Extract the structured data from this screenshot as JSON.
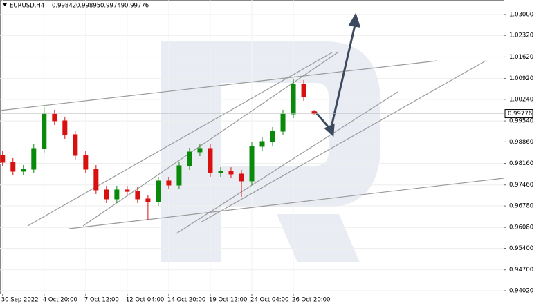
{
  "chart_data": {
    "type": "candlestick",
    "title": "EURUSD,H4",
    "x": [
      0,
      4,
      8,
      12,
      16,
      20,
      24,
      28,
      32,
      36,
      40,
      44,
      48,
      52,
      56,
      60,
      64,
      68,
      72,
      76,
      80,
      84,
      88,
      92,
      96,
      100,
      104,
      108,
      112,
      116,
      120
    ],
    "open": [
      0.9842,
      0.98196,
      0.97904,
      0.97971,
      0.98645,
      0.99767,
      0.99543,
      0.99094,
      0.9842,
      0.97971,
      0.97298,
      0.97006,
      0.97298,
      0.9725,
      0.97006,
      0.96916,
      0.9759,
      0.97455,
      0.98083,
      0.98532,
      0.98645,
      0.97859,
      0.979,
      0.97814,
      0.9759,
      0.98712,
      0.98869,
      0.99206,
      0.99767,
      1.00733,
      0.99842
    ],
    "high": [
      0.98555,
      0.98331,
      0.98106,
      0.9878,
      0.9999,
      0.99902,
      0.99678,
      0.99229,
      0.98555,
      0.98106,
      0.97433,
      0.97433,
      0.97433,
      0.97385,
      0.97141,
      0.97725,
      0.97725,
      0.98218,
      0.98667,
      0.9878,
      0.9878,
      0.98035,
      0.98035,
      0.97949,
      0.98847,
      0.99004,
      0.99341,
      0.99902,
      1.0089,
      1.00868,
      0.99895
    ],
    "low": [
      0.98061,
      0.97769,
      0.97769,
      0.97836,
      0.9851,
      0.99408,
      0.98959,
      0.98285,
      0.97836,
      0.97163,
      0.96871,
      0.96871,
      0.97115,
      0.96871,
      0.96332,
      0.96781,
      0.9732,
      0.9732,
      0.97948,
      0.98397,
      0.97724,
      0.97724,
      0.97679,
      0.97073,
      0.97455,
      0.98577,
      0.98734,
      0.99071,
      0.99632,
      1.00193,
      0.99749
    ],
    "close": [
      0.98196,
      0.97904,
      0.97971,
      0.98645,
      0.99767,
      0.99543,
      0.99094,
      0.9842,
      0.97971,
      0.97298,
      0.97006,
      0.97298,
      0.9725,
      0.97006,
      0.96916,
      0.9759,
      0.97455,
      0.98083,
      0.98532,
      0.98645,
      0.97859,
      0.979,
      0.97814,
      0.9759,
      0.98712,
      0.98869,
      0.99206,
      0.99767,
      1.00733,
      1.00328,
      0.99776
    ],
    "up_color": "#0a8a0a",
    "down_color": "#d81010",
    "xlim": [
      -1,
      193
    ],
    "xticks": [
      {
        "value": 0,
        "label": "30 Sep 2022"
      },
      {
        "value": 16,
        "label": "4 Oct 20:00"
      },
      {
        "value": 32,
        "label": "7 Oct 12:00"
      },
      {
        "value": 48,
        "label": "12 Oct 04:00"
      },
      {
        "value": 64,
        "label": "14 Oct 20:00"
      },
      {
        "value": 80,
        "label": "19 Oct 12:00"
      },
      {
        "value": 96,
        "label": "24 Oct 04:00"
      },
      {
        "value": 112,
        "label": "26 Oct 20:00"
      }
    ],
    "ylim": [
      0.9393,
      1.0347
    ],
    "yticks": [
      {
        "value": 1.03,
        "label": "1.03000"
      },
      {
        "value": 1.0232,
        "label": "1.02320"
      },
      {
        "value": 1.0162,
        "label": "1.01620"
      },
      {
        "value": 1.0092,
        "label": "1.00920"
      },
      {
        "value": 1.0024,
        "label": "1.00240"
      },
      {
        "value": 0.9954,
        "label": "0.99540"
      },
      {
        "value": 0.9886,
        "label": "0.98860"
      },
      {
        "value": 0.9816,
        "label": "0.98160"
      },
      {
        "value": 0.9746,
        "label": "0.97460"
      },
      {
        "value": 0.9678,
        "label": "0.96780"
      },
      {
        "value": 0.9608,
        "label": "0.96080"
      },
      {
        "value": 0.954,
        "label": "0.95400"
      },
      {
        "value": 0.947,
        "label": "0.94700"
      },
      {
        "value": 0.9402,
        "label": "0.94020"
      }
    ],
    "grid": true
  }
}
